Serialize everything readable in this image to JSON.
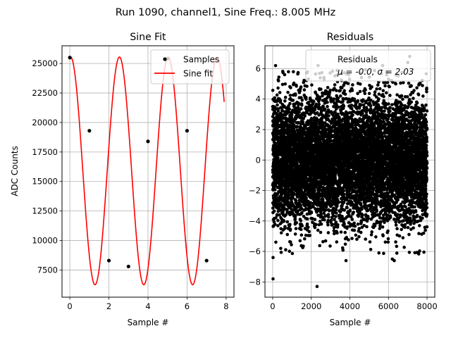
{
  "figure": {
    "suptitle": "Run 1090, channel1, Sine Freq.: 8.005 MHz"
  },
  "chart_data": [
    {
      "type": "line",
      "title": "Sine Fit",
      "xlabel": "Sample #",
      "ylabel": "ADC Counts",
      "xlim": [
        -0.4,
        8.4
      ],
      "ylim": [
        5200,
        26500
      ],
      "grid": true,
      "xticks": [
        0,
        2,
        4,
        6,
        8
      ],
      "xtick_labels": [
        "0",
        "2",
        "4",
        "6",
        "8"
      ],
      "yticks": [
        7500,
        10000,
        12500,
        15000,
        17500,
        20000,
        22500,
        25000
      ],
      "ytick_labels": [
        "7500",
        "10000",
        "12500",
        "15000",
        "17500",
        "20000",
        "22500",
        "25000"
      ],
      "legend": {
        "placement": "top-right",
        "entries": [
          "Samples",
          "Sine fit"
        ]
      },
      "samples": {
        "name": "Samples",
        "x": [
          0,
          1,
          2,
          3,
          4,
          5,
          6,
          7
        ],
        "y": [
          25500,
          19300,
          8300,
          7800,
          18400,
          25400,
          19300,
          8300
        ]
      },
      "fit": {
        "name": "Sine fit",
        "offset": 15900,
        "amplitude": 9650,
        "period_samples": 2.498,
        "phase_sample": 0.04,
        "x_range": [
          0,
          7.9
        ],
        "color": "#ff0000"
      },
      "sample_color": "#000000"
    },
    {
      "type": "scatter",
      "title": "Residuals",
      "xlabel": "Sample #",
      "ylabel": "",
      "xlim": [
        -400,
        8400
      ],
      "ylim": [
        -9,
        7.5
      ],
      "grid": true,
      "xticks": [
        0,
        2000,
        4000,
        6000,
        8000
      ],
      "xtick_labels": [
        "0",
        "2000",
        "4000",
        "6000",
        "8000"
      ],
      "yticks": [
        -8,
        -6,
        -4,
        -2,
        0,
        2,
        4,
        6
      ],
      "ytick_labels": [
        "−8",
        "−6",
        "−4",
        "−2",
        "0",
        "2",
        "4",
        "6"
      ],
      "legend": {
        "placement": "top-right",
        "entries": [
          "Residuals"
        ],
        "stats_line": "μ = -0.0, σ = 2.03"
      },
      "series": {
        "name": "Residuals",
        "n_points": 8000,
        "mean": 0.0,
        "std": 2.03,
        "x_range": [
          0,
          8000
        ],
        "highlighted_points": [
          {
            "x": 20,
            "y": -7.8
          },
          {
            "x": 2300,
            "y": -8.3
          },
          {
            "x": 20,
            "y": -6.4
          },
          {
            "x": 3800,
            "y": -6.6
          },
          {
            "x": 6200,
            "y": -6.5
          },
          {
            "x": 6300,
            "y": -6.6
          },
          {
            "x": 150,
            "y": 6.2
          },
          {
            "x": 2350,
            "y": 6.2
          },
          {
            "x": 7100,
            "y": 6.8
          },
          {
            "x": 5700,
            "y": 6.2
          },
          {
            "x": 7000,
            "y": 6.4
          }
        ]
      },
      "point_color": "#000000"
    }
  ]
}
